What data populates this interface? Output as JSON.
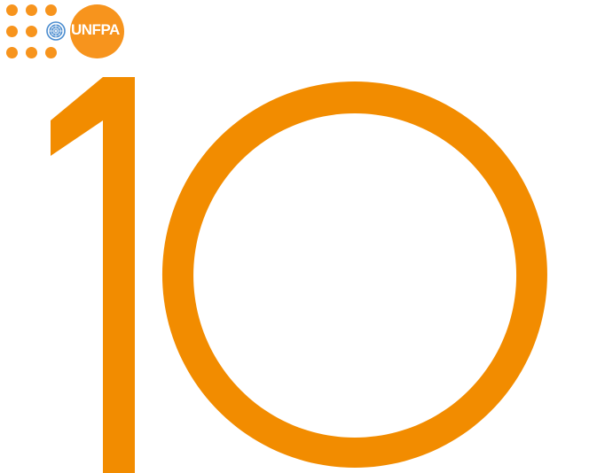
{
  "logo": {
    "wordmark": "UNFPA",
    "emblem": "un-emblem-icon",
    "accent_color": "#f7941d",
    "emblem_color": "#4a8ccf"
  },
  "headline": {
    "number": "10",
    "color": "#f28c00"
  }
}
